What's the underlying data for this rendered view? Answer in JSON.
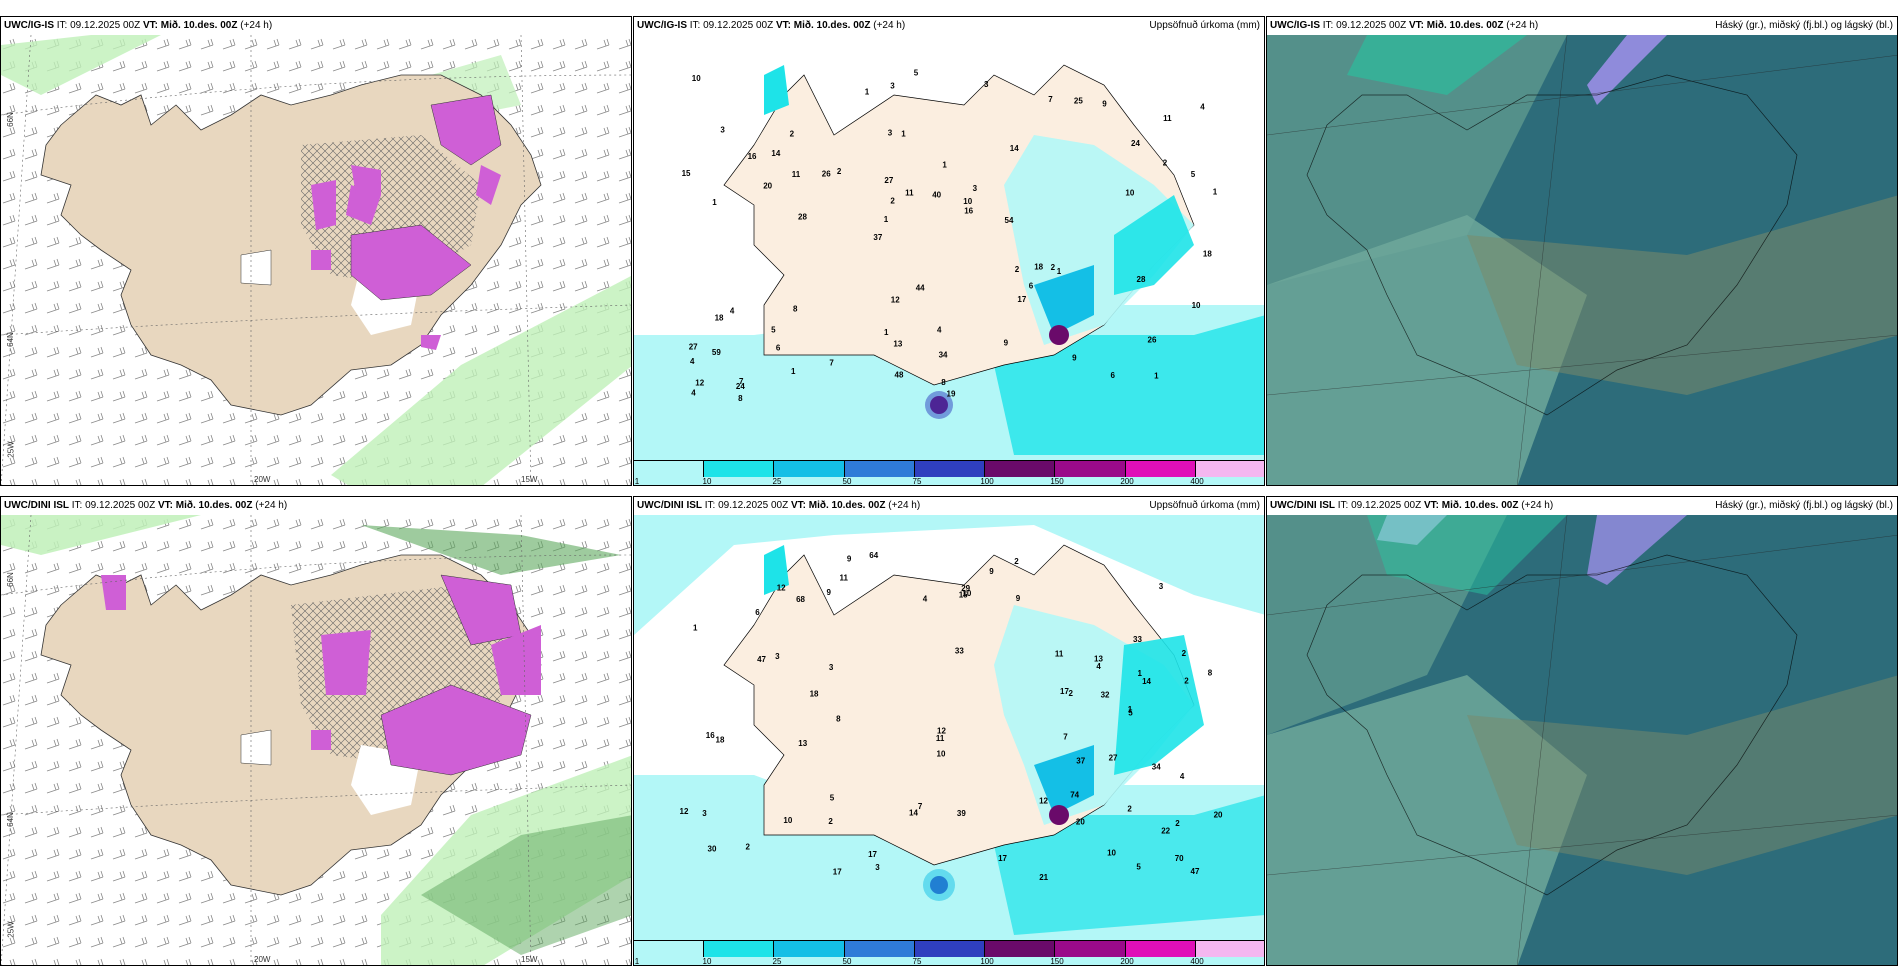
{
  "panels": {
    "p1": {
      "model": "UWC/IG-IS",
      "it": "IT: 09.12.2025 00Z",
      "vt": "VT: Mið. 10.des. 00Z",
      "lead": "(+24 h)",
      "right_title": ""
    },
    "p2": {
      "model": "UWC/IG-IS",
      "it": "IT: 09.12.2025 00Z",
      "vt": "VT: Mið. 10.des. 00Z",
      "lead": "(+24 h)",
      "right_title": "Uppsöfnuð úrkoma (mm)"
    },
    "p3": {
      "model": "UWC/IG-IS",
      "it": "IT: 09.12.2025 00Z",
      "vt": "VT: Mið. 10.des. 00Z",
      "lead": "(+24 h)",
      "right_title": "Háský (gr.), miðský (fj.bl.) og lágský (bl.)"
    },
    "p4": {
      "model": "UWC/DINI ISL",
      "it": "IT: 09.12.2025 00Z",
      "vt": "VT: Mið. 10.des. 00Z",
      "lead": "(+24 h)",
      "right_title": ""
    },
    "p5": {
      "model": "UWC/DINI ISL",
      "it": "IT: 09.12.2025 00Z",
      "vt": "VT: Mið. 10.des. 00Z",
      "lead": "(+24 h)",
      "right_title": "Uppsöfnuð úrkoma (mm)"
    },
    "p6": {
      "model": "UWC/DINI ISL",
      "it": "IT: 09.12.2025 00Z",
      "vt": "VT: Mið. 10.des. 00Z",
      "lead": "(+24 h)",
      "right_title": "Háský (gr.), miðský (fj.bl.) og lágský (bl.)"
    }
  },
  "axis_labels": {
    "lat_66": "66N",
    "lat_64": "64N",
    "lon_25": "25W",
    "lon_20": "20W",
    "lon_15": "15W"
  },
  "colorbar": {
    "ticks": [
      "1",
      "10",
      "25",
      "50",
      "75",
      "100",
      "150",
      "200",
      "400"
    ],
    "colors": [
      "#b3f7f7",
      "#1ee3e8",
      "#14bfe6",
      "#2f7bd8",
      "#2f3fbf",
      "#6a0a6a",
      "#9a0a8a",
      "#e00fb8",
      "#f5b7f0"
    ]
  },
  "colors": {
    "land": "#e8d7bf",
    "precip_land": "#fbeee0",
    "ocean_light": "#b3f7f7",
    "ocean_mid": "#1ee3e8",
    "cloud_base": "#2d7c8a",
    "cloud_light": "#6fa89a",
    "pink": "#cf5fd6",
    "green": "#bff0b8"
  },
  "precip_top_labels": [
    "1",
    "1",
    "11",
    "37",
    "14",
    "7",
    "3",
    "1",
    "4",
    "2",
    "4",
    "6",
    "1",
    "3",
    "1",
    "3",
    "3",
    "1",
    "2",
    "2",
    "1",
    "1",
    "2",
    "2",
    "7",
    "8",
    "6",
    "26",
    "2",
    "19",
    "26",
    "20",
    "17",
    "1",
    "5",
    "10",
    "12",
    "13",
    "16",
    "18",
    "24",
    "4",
    "6",
    "9",
    "5",
    "8",
    "4",
    "4",
    "9",
    "5",
    "28",
    "15",
    "14",
    "25",
    "24",
    "3",
    "1",
    "11",
    "10",
    "12",
    "7",
    "18",
    "11",
    "27",
    "10",
    "16",
    "18",
    "27",
    "34",
    "40",
    "59",
    "54",
    "28",
    "48",
    "10",
    "44",
    "9",
    "8"
  ],
  "precip_bot_labels": [
    "2",
    "2",
    "2",
    "33",
    "30",
    "11",
    "1",
    "2",
    "3",
    "3",
    "2",
    "1",
    "1",
    "3",
    "3",
    "6",
    "22",
    "9",
    "7",
    "14",
    "16",
    "18",
    "17",
    "17",
    "17",
    "14",
    "9",
    "9",
    "11",
    "20",
    "13",
    "20",
    "17",
    "11",
    "34",
    "10",
    "2",
    "4",
    "5",
    "8",
    "27",
    "32",
    "15",
    "18",
    "4",
    "37",
    "2",
    "2",
    "3",
    "4",
    "10",
    "10",
    "10",
    "8",
    "12",
    "7",
    "9",
    "12",
    "21",
    "29",
    "64",
    "74",
    "47",
    "39",
    "68",
    "70",
    "12",
    "12",
    "13",
    "47",
    "33",
    "5",
    "5"
  ]
}
